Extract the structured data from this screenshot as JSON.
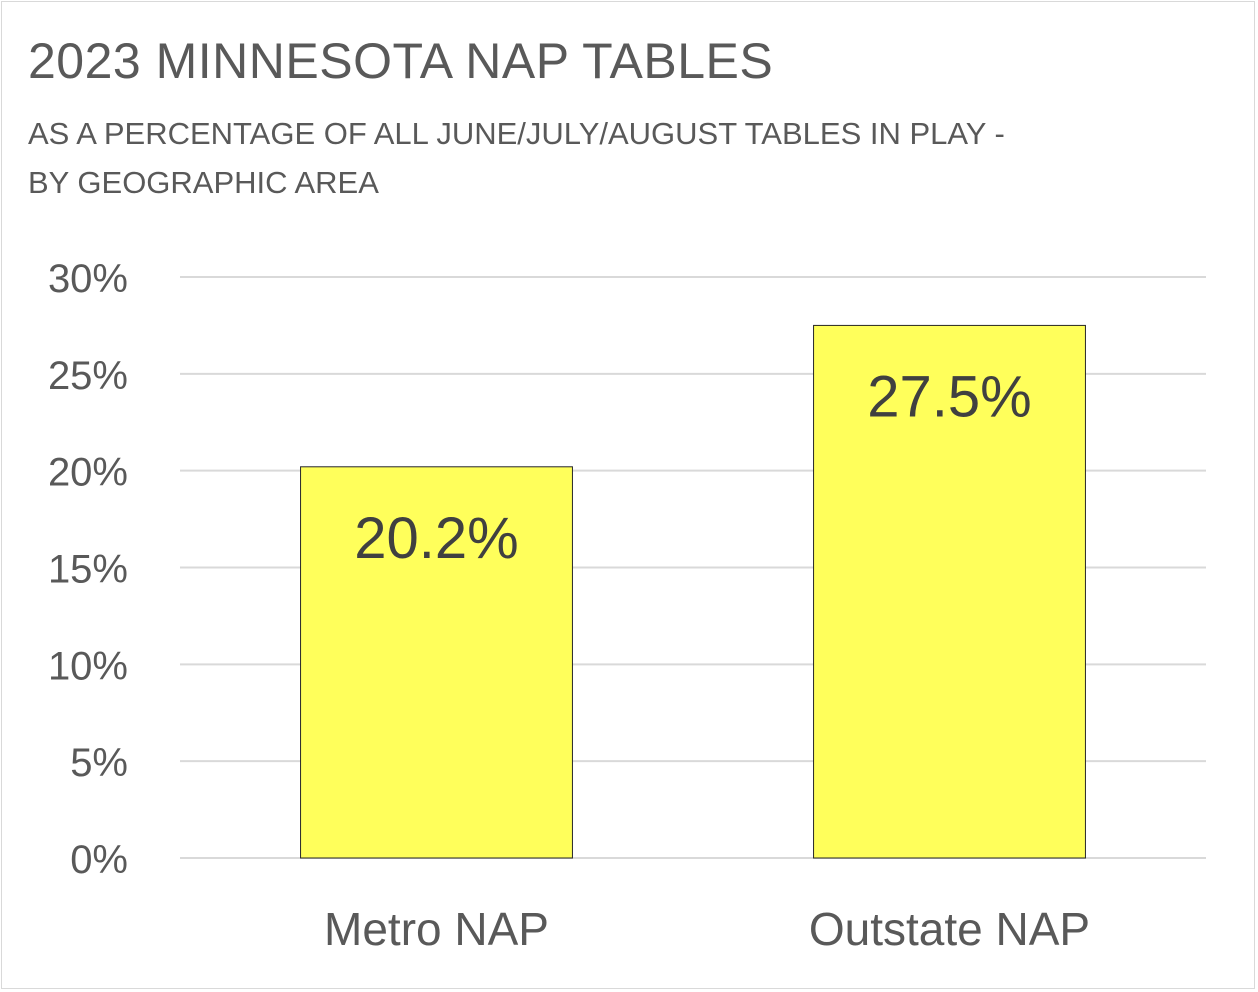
{
  "chart_data": {
    "type": "bar",
    "title": "2023 MINNESOTA NAP TABLES",
    "subtitle": "AS A PERCENTAGE OF ALL JUNE/JULY/AUGUST TABLES IN PLAY - BY GEOGRAPHIC AREA",
    "categories": [
      "Metro NAP",
      "Outstate NAP"
    ],
    "values": [
      20.2,
      27.5
    ],
    "data_labels": [
      "20.2%",
      "27.5%"
    ],
    "ylim": [
      0,
      30
    ],
    "yticks": [
      0,
      5,
      10,
      15,
      20,
      25,
      30
    ],
    "ytick_labels": [
      "0%",
      "5%",
      "10%",
      "15%",
      "20%",
      "25%",
      "30%"
    ],
    "xlabel": "",
    "ylabel": "",
    "grid": true,
    "legend": "none",
    "colors": {
      "bar_fill": "#ffff5b",
      "bar_stroke": "#262626",
      "gridline": "#d9d9d9",
      "text": "#595959",
      "data_label": "#404040"
    }
  }
}
